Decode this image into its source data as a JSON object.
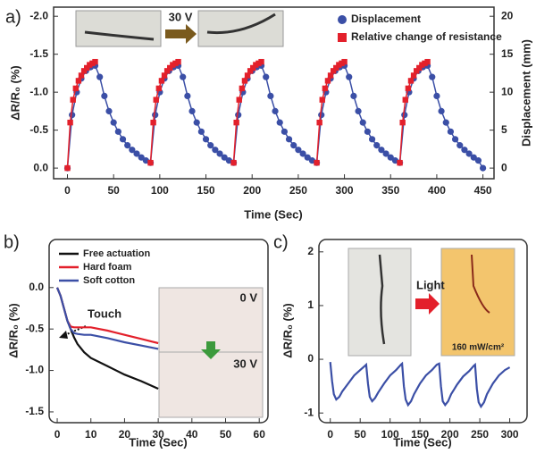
{
  "chart_data": [
    {
      "type": "line",
      "panel_label": "a)",
      "xlabel": "Time (Sec)",
      "ylabel": "ΔR/R₀ (%)",
      "y2label": "Displacement (mm)",
      "annotations": [
        "30 V"
      ],
      "xlim": [
        -15,
        462
      ],
      "xticks": [
        0,
        50,
        100,
        150,
        200,
        250,
        300,
        350,
        400,
        450
      ],
      "ylim": [
        0.14,
        -2.12
      ],
      "yticks": [
        {
          "value": -2,
          "label": "-2.0"
        },
        {
          "value": -1.5,
          "label": "-1.5"
        },
        {
          "value": -1,
          "label": "-1.0"
        },
        {
          "value": -0.5,
          "label": "-0.5"
        },
        {
          "value": 0,
          "label": "0.0"
        }
      ],
      "y2lim": [
        -1.4,
        21.2
      ],
      "y2ticks": [
        0,
        5,
        10,
        15,
        20
      ],
      "series": [
        {
          "name": "Displacement",
          "color": "#3b4fa6",
          "marker": "circle",
          "axis": "y2",
          "x": [
            0,
            5,
            10,
            15,
            20,
            25,
            30,
            35,
            40,
            45,
            50,
            55,
            60,
            65,
            70,
            75,
            80,
            85,
            90,
            95,
            100,
            105,
            110,
            115,
            120,
            125,
            130,
            135,
            140,
            145,
            150,
            155,
            160,
            165,
            170,
            175,
            180,
            185,
            190,
            195,
            200,
            205,
            210,
            215,
            220,
            225,
            230,
            235,
            240,
            245,
            250,
            255,
            260,
            265,
            270,
            275,
            280,
            285,
            290,
            295,
            300,
            305,
            310,
            315,
            320,
            325,
            330,
            335,
            340,
            345,
            350,
            355,
            360,
            365,
            370,
            375,
            380,
            385,
            390,
            395,
            400,
            405,
            410,
            415,
            420,
            425,
            430,
            435,
            440,
            445,
            450
          ],
          "values": [
            0,
            7,
            10,
            11.8,
            12.8,
            13.3,
            13.5,
            12,
            9.5,
            7.5,
            6,
            4.8,
            3.8,
            3,
            2.4,
            1.9,
            1.4,
            1,
            0.7,
            7,
            10,
            11.8,
            12.8,
            13.3,
            13.5,
            12,
            9.5,
            7.5,
            6,
            4.8,
            3.8,
            3,
            2.4,
            1.9,
            1.4,
            1,
            0.7,
            7,
            10,
            11.8,
            12.8,
            13.3,
            13.5,
            12,
            9.5,
            7.5,
            6,
            4.8,
            3.8,
            3,
            2.4,
            1.9,
            1.4,
            1,
            0.7,
            7,
            10,
            11.8,
            12.8,
            13.3,
            13.5,
            12,
            9.5,
            7.5,
            6,
            4.8,
            3.8,
            3,
            2.4,
            1.9,
            1.4,
            1,
            0.7,
            7,
            10,
            11.8,
            12.8,
            13.3,
            13.5,
            12,
            9.5,
            7.5,
            6,
            4.8,
            3.8,
            3,
            2.4,
            1.9,
            1.4,
            1,
            0
          ]
        },
        {
          "name": "Relative change of resistance",
          "color": "#e3202b",
          "marker": "square",
          "x": [
            0,
            3,
            6,
            9,
            12,
            15,
            18,
            21,
            24,
            27,
            30,
            45,
            90,
            93,
            96,
            99,
            102,
            105,
            108,
            111,
            114,
            117,
            120,
            135,
            180,
            183,
            186,
            189,
            192,
            195,
            198,
            201,
            204,
            207,
            210,
            225,
            270,
            273,
            276,
            279,
            282,
            285,
            288,
            291,
            294,
            297,
            300,
            315,
            360,
            363,
            366,
            369,
            372,
            375,
            378,
            381,
            384,
            387,
            390
          ],
          "values": [
            0,
            -0.6,
            -0.9,
            -1.05,
            -1.15,
            -1.22,
            -1.28,
            -1.32,
            -1.36,
            -1.38,
            -1.4,
            null,
            -0.07,
            -0.6,
            -0.9,
            -1.05,
            -1.15,
            -1.22,
            -1.28,
            -1.32,
            -1.36,
            -1.38,
            -1.4,
            null,
            -0.07,
            -0.6,
            -0.9,
            -1.05,
            -1.15,
            -1.22,
            -1.28,
            -1.32,
            -1.36,
            -1.38,
            -1.4,
            null,
            -0.07,
            -0.6,
            -0.9,
            -1.05,
            -1.15,
            -1.22,
            -1.28,
            -1.32,
            -1.36,
            -1.38,
            -1.4,
            null,
            -0.07,
            -0.6,
            -0.9,
            -1.05,
            -1.15,
            -1.22,
            -1.28,
            -1.32,
            -1.36,
            -1.38,
            -1.4
          ]
        }
      ]
    },
    {
      "type": "line",
      "panel_label": "b)",
      "xlabel": "Time (Sec)",
      "ylabel": "ΔR/R₀ (%)",
      "annotations": [
        "Touch",
        "0 V",
        "30 V"
      ],
      "xlim": [
        -2.4,
        62.6
      ],
      "xticks": [
        0,
        10,
        20,
        30,
        40,
        50,
        60
      ],
      "ylim": [
        -1.63,
        0.58
      ],
      "yticks": [
        {
          "value": 0,
          "label": "0.0"
        },
        {
          "value": -0.5,
          "label": "-0.5"
        },
        {
          "value": -1,
          "label": "-1.0"
        },
        {
          "value": -1.5,
          "label": "-1.5"
        }
      ],
      "x": [
        0,
        1,
        2,
        3,
        4,
        5,
        6,
        8,
        10,
        15,
        20,
        25,
        30
      ],
      "series": [
        {
          "name": "Free actuation",
          "color": "#111111",
          "values": [
            0,
            -0.1,
            -0.25,
            -0.4,
            -0.5,
            -0.6,
            -0.68,
            -0.78,
            -0.85,
            -0.95,
            -1.05,
            -1.13,
            -1.22
          ]
        },
        {
          "name": "Hard foam",
          "color": "#e3202b",
          "values": [
            0,
            -0.1,
            -0.25,
            -0.4,
            -0.47,
            -0.48,
            -0.48,
            -0.48,
            -0.48,
            -0.52,
            -0.57,
            -0.62,
            -0.67
          ]
        },
        {
          "name": "Soft cotton",
          "color": "#3b4fa6",
          "values": [
            0,
            -0.1,
            -0.25,
            -0.4,
            -0.5,
            -0.55,
            -0.56,
            -0.57,
            -0.57,
            -0.61,
            -0.66,
            -0.7,
            -0.74
          ]
        }
      ]
    },
    {
      "type": "line",
      "panel_label": "c)",
      "xlabel": "Time (Sec)",
      "ylabel": "ΔR/R₀ (%)",
      "annotations": [
        "Light",
        "160 mW/cm²"
      ],
      "xlim": [
        -19,
        329
      ],
      "xticks": [
        0,
        50,
        100,
        150,
        200,
        250,
        300
      ],
      "ylim": [
        -1.18,
        2.23
      ],
      "yticks": [
        -1,
        0,
        1,
        2
      ],
      "x": [
        0,
        3,
        6,
        10,
        15,
        20,
        30,
        40,
        50,
        58,
        60,
        63,
        66,
        70,
        75,
        80,
        90,
        100,
        110,
        118,
        120,
        123,
        126,
        130,
        135,
        140,
        150,
        160,
        170,
        178,
        182,
        185,
        188,
        192,
        197,
        202,
        212,
        222,
        232,
        240,
        242,
        245,
        248,
        252,
        257,
        262,
        272,
        282,
        292,
        300
      ],
      "series": [
        {
          "color": "#3b4fa6",
          "values": [
            -0.05,
            -0.4,
            -0.65,
            -0.75,
            -0.7,
            -0.6,
            -0.45,
            -0.3,
            -0.2,
            -0.12,
            -0.1,
            -0.45,
            -0.7,
            -0.78,
            -0.72,
            -0.62,
            -0.45,
            -0.3,
            -0.2,
            -0.1,
            -0.08,
            -0.5,
            -0.75,
            -0.85,
            -0.78,
            -0.65,
            -0.45,
            -0.3,
            -0.2,
            -0.1,
            -0.08,
            -0.5,
            -0.78,
            -0.85,
            -0.78,
            -0.65,
            -0.47,
            -0.32,
            -0.22,
            -0.12,
            -0.1,
            -0.55,
            -0.8,
            -0.88,
            -0.8,
            -0.65,
            -0.45,
            -0.3,
            -0.2,
            -0.15
          ]
        }
      ]
    }
  ]
}
